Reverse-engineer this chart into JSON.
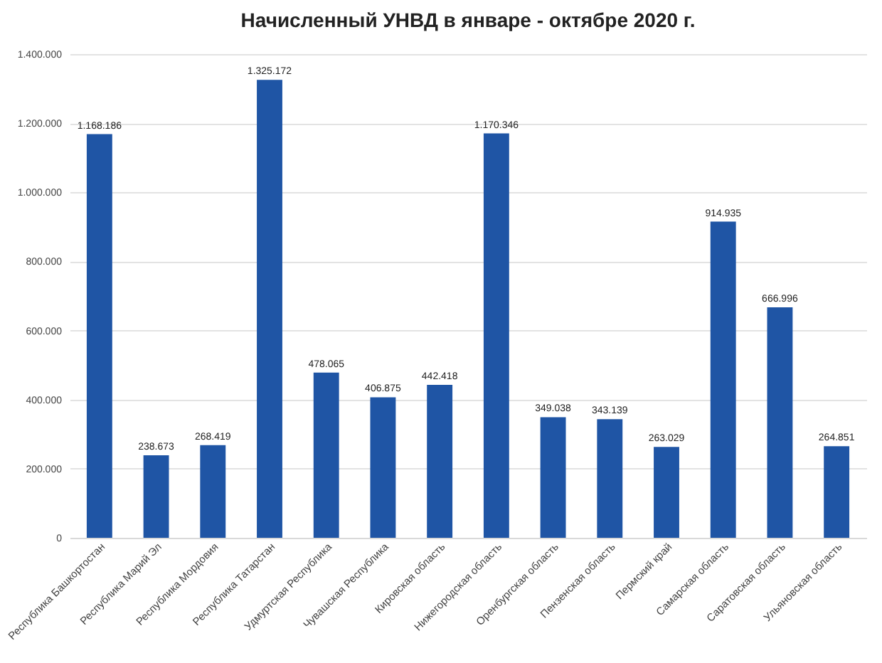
{
  "chart_data": {
    "type": "bar",
    "title": "Начисленный УНВД в январе - октябре 2020 г.",
    "categories": [
      "Республика Башкортостан",
      "Республика Марий Эл",
      "Республика Мордовия",
      "Республика Татарстан",
      "Удмуртская Республика",
      "Чувашская Республика",
      "Кировская область",
      "Нижегородская область",
      "Оренбургская область",
      "Пензенская область",
      "Пермский край",
      "Самарская область",
      "Саратовская область",
      "Ульяновская область"
    ],
    "values": [
      1168186,
      238673,
      268419,
      1325172,
      478065,
      406875,
      442418,
      1170346,
      349038,
      343139,
      263029,
      914935,
      666996,
      264851
    ],
    "value_labels": [
      "1.168.186",
      "238.673",
      "268.419",
      "1.325.172",
      "478.065",
      "406.875",
      "442.418",
      "1.170.346",
      "349.038",
      "343.139",
      "263.029",
      "914.935",
      "666.996",
      "264.851"
    ],
    "color": "#1f55a5",
    "ylim": [
      0,
      1400000
    ],
    "yticks": [
      {
        "value": 0,
        "label": "0"
      },
      {
        "value": 200000,
        "label": "200.000"
      },
      {
        "value": 400000,
        "label": "400.000"
      },
      {
        "value": 600000,
        "label": "600.000"
      },
      {
        "value": 800000,
        "label": "800.000"
      },
      {
        "value": 1000000,
        "label": "1.000.000"
      },
      {
        "value": 1200000,
        "label": "1.200.000"
      },
      {
        "value": 1400000,
        "label": "1.400.000"
      }
    ],
    "grid": "y"
  }
}
